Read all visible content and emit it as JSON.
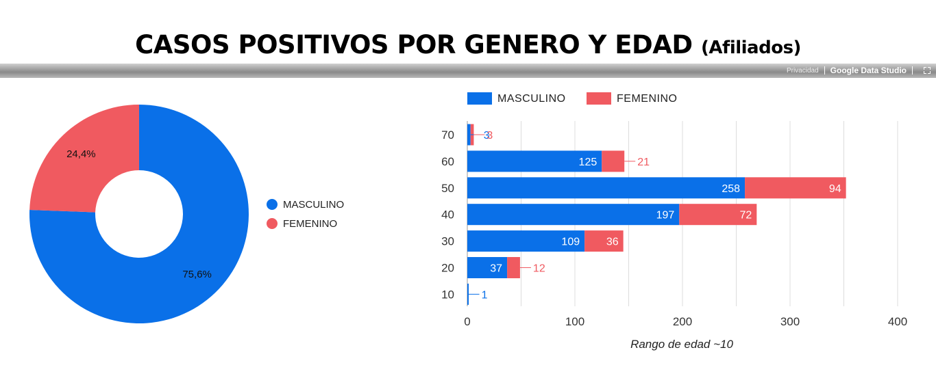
{
  "title": {
    "main": "CASOS POSITIVOS POR GENERO Y EDAD",
    "sub": "(Afiliados)"
  },
  "footer": {
    "privacy": "Privacidad",
    "brand": "Google Data Studio",
    "fullscreen_icon": "fullscreen-icon"
  },
  "colors": {
    "masculino": "#0a70e8",
    "femenino": "#f05a60"
  },
  "chart_data": [
    {
      "type": "pie",
      "donut": true,
      "legend_position": "right",
      "slices": [
        {
          "name": "MASCULINO",
          "value": 75.6,
          "label": "75,6%"
        },
        {
          "name": "FEMENINO",
          "value": 24.4,
          "label": "24,4%"
        }
      ]
    },
    {
      "type": "bar",
      "orientation": "horizontal",
      "stacked": true,
      "legend_position": "top",
      "categories": [
        "70",
        "60",
        "50",
        "40",
        "30",
        "20",
        "10"
      ],
      "series": [
        {
          "name": "MASCULINO",
          "values": [
            3,
            125,
            258,
            197,
            109,
            37,
            1
          ]
        },
        {
          "name": "FEMENINO",
          "values": [
            3,
            21,
            94,
            72,
            36,
            12,
            0
          ]
        }
      ],
      "xlabel": "Rango de edad ~10",
      "xlim": [
        0,
        400
      ],
      "xticks": [
        0,
        100,
        200,
        300,
        400
      ],
      "grid": true
    }
  ]
}
